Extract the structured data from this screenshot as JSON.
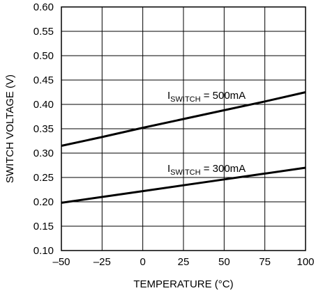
{
  "chart_data": {
    "type": "line",
    "title": "",
    "xlabel": "TEMPERATURE (°C)",
    "ylabel": "SWITCH VOLTAGE (V)",
    "xlim": [
      -50,
      100
    ],
    "ylim": [
      0.1,
      0.6
    ],
    "xticks": [
      -50,
      -25,
      0,
      25,
      50,
      75,
      100
    ],
    "xtick_labels": [
      "–50",
      "–25",
      "0",
      "25",
      "50",
      "75",
      "100"
    ],
    "yticks": [
      0.1,
      0.15,
      0.2,
      0.25,
      0.3,
      0.35,
      0.4,
      0.45,
      0.5,
      0.55,
      0.6
    ],
    "ytick_labels": [
      "0.10",
      "0.15",
      "0.20",
      "0.25",
      "0.30",
      "0.35",
      "0.40",
      "0.45",
      "0.50",
      "0.55",
      "0.60"
    ],
    "grid": true,
    "series": [
      {
        "label_main": "I",
        "label_sub": "SWITCH",
        "label_rest": " = 500mA",
        "x": [
          -50,
          -25,
          0,
          25,
          50,
          75,
          100
        ],
        "y": [
          0.315,
          0.333,
          0.352,
          0.37,
          0.388,
          0.406,
          0.425
        ]
      },
      {
        "label_main": "I",
        "label_sub": "SWITCH",
        "label_rest": " = 300mA",
        "x": [
          -50,
          -25,
          0,
          25,
          50,
          75,
          100
        ],
        "y": [
          0.198,
          0.21,
          0.222,
          0.234,
          0.246,
          0.258,
          0.27
        ]
      }
    ]
  }
}
